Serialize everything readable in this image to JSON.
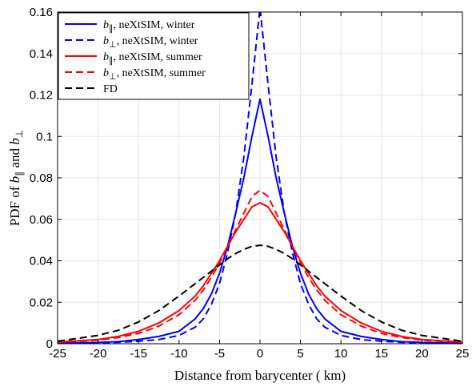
{
  "chart_data": {
    "type": "line",
    "xlabel": "Distance from barycenter ( km)",
    "ylabel": "PDF of b∥ and b⊥",
    "xlim": [
      -25,
      25
    ],
    "ylim": [
      0,
      0.16
    ],
    "xticks": [
      -25,
      -20,
      -15,
      -10,
      -5,
      0,
      5,
      10,
      15,
      20,
      25
    ],
    "yticks": [
      0,
      0.02,
      0.04,
      0.06,
      0.08,
      0.1,
      0.12,
      0.14,
      0.16
    ],
    "xtick_labels": [
      "-25",
      "-20",
      "-15",
      "-10",
      "-5",
      "0",
      "5",
      "10",
      "15",
      "20",
      "25"
    ],
    "ytick_labels": [
      "0",
      "0.02",
      "0.04",
      "0.06",
      "0.08",
      "0.1",
      "0.12",
      "0.14",
      "0.16"
    ],
    "grid": true,
    "legend_position": "top-left",
    "x": [
      -25,
      -20,
      -17.5,
      -15,
      -12.5,
      -10,
      -8,
      -7,
      -6,
      -5,
      -4,
      -3,
      -2,
      -1,
      0,
      1,
      2,
      3,
      4,
      5,
      6,
      7,
      8,
      10,
      12.5,
      15,
      17.5,
      20,
      25
    ],
    "series": [
      {
        "name": "b∥, neXtSIM, winter",
        "legend_prefix": "b",
        "legend_sub": "∥",
        "legend_suffix": ", neXtSIM, winter",
        "color": "#0000ff",
        "dash": "solid",
        "values": [
          0.0003,
          0.0006,
          0.001,
          0.002,
          0.0035,
          0.006,
          0.012,
          0.017,
          0.024,
          0.034,
          0.047,
          0.063,
          0.08,
          0.1,
          0.118,
          0.1,
          0.08,
          0.063,
          0.047,
          0.034,
          0.024,
          0.017,
          0.012,
          0.006,
          0.0035,
          0.002,
          0.001,
          0.0006,
          0.0003
        ]
      },
      {
        "name": "b⊥, neXtSIM, winter",
        "legend_prefix": "b",
        "legend_sub": "⊥",
        "legend_suffix": ", neXtSIM, winter",
        "color": "#0000ff",
        "dash": "dashed",
        "values": [
          0.0002,
          0.0004,
          0.0007,
          0.0012,
          0.002,
          0.004,
          0.008,
          0.012,
          0.019,
          0.029,
          0.044,
          0.063,
          0.09,
          0.125,
          0.162,
          0.125,
          0.09,
          0.063,
          0.044,
          0.029,
          0.019,
          0.012,
          0.008,
          0.004,
          0.002,
          0.0012,
          0.0007,
          0.0004,
          0.0002
        ]
      },
      {
        "name": "b∥, neXtSIM, summer",
        "legend_prefix": "b",
        "legend_sub": "∥",
        "legend_suffix": ", neXtSIM, summer",
        "color": "#ff0000",
        "dash": "solid",
        "values": [
          0.0008,
          0.002,
          0.0035,
          0.006,
          0.01,
          0.016,
          0.023,
          0.028,
          0.034,
          0.04,
          0.047,
          0.054,
          0.06,
          0.066,
          0.068,
          0.066,
          0.06,
          0.054,
          0.047,
          0.04,
          0.034,
          0.028,
          0.023,
          0.016,
          0.01,
          0.006,
          0.0035,
          0.002,
          0.0008
        ]
      },
      {
        "name": "b⊥, neXtSIM, summer",
        "legend_prefix": "b",
        "legend_sub": "⊥",
        "legend_suffix": ", neXtSIM, summer",
        "color": "#ff0000",
        "dash": "dashed",
        "values": [
          0.0007,
          0.0017,
          0.003,
          0.005,
          0.0085,
          0.014,
          0.021,
          0.026,
          0.032,
          0.039,
          0.047,
          0.055,
          0.063,
          0.071,
          0.074,
          0.071,
          0.063,
          0.055,
          0.047,
          0.039,
          0.032,
          0.026,
          0.021,
          0.014,
          0.0085,
          0.005,
          0.003,
          0.0017,
          0.0007
        ]
      },
      {
        "name": "FD",
        "legend_prefix": "FD",
        "legend_sub": "",
        "legend_suffix": "",
        "color": "#000000",
        "dash": "dashed",
        "values": [
          0.0012,
          0.004,
          0.0065,
          0.0105,
          0.016,
          0.023,
          0.029,
          0.032,
          0.035,
          0.038,
          0.041,
          0.0435,
          0.0455,
          0.047,
          0.0475,
          0.047,
          0.0455,
          0.0435,
          0.041,
          0.038,
          0.035,
          0.032,
          0.029,
          0.023,
          0.016,
          0.0105,
          0.0065,
          0.004,
          0.0012
        ]
      }
    ]
  }
}
